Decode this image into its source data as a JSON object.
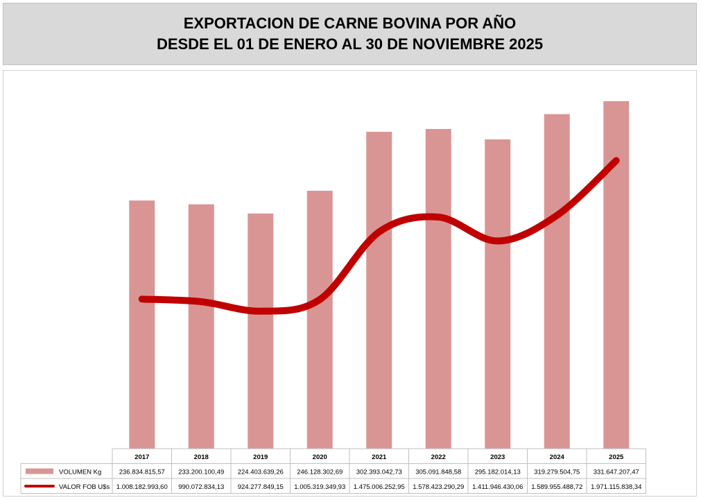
{
  "title_line1": "EXPORTACION DE CARNE BOVINA POR AÑO",
  "title_line2": "DESDE EL 01 DE ENERO AL 30 DE NOVIEMBRE 2025",
  "colors": {
    "bar": "#d99594",
    "line": "#c00000",
    "title_bg": "#d9d9d9"
  },
  "chart_data": {
    "type": "bar",
    "categories": [
      "2017",
      "2018",
      "2019",
      "2020",
      "2021",
      "2022",
      "2023",
      "2024",
      "2025"
    ],
    "series": [
      {
        "name": "VOLUMEN Kg",
        "kind": "bar",
        "values": [
          236834815.57,
          233200100.49,
          224403639.26,
          246128302.69,
          302393042.73,
          305091848.58,
          295182014.13,
          319279504.75,
          331647207.47
        ],
        "labels": [
          "236.834.815,57",
          "233.200.100,49",
          "224.403.639,26",
          "246.128.302,69",
          "302.393.042,73",
          "305.091.848,58",
          "295.182.014,13",
          "319.279.504,75",
          "331.647.207,47"
        ]
      },
      {
        "name": "VALOR FOB U$s",
        "kind": "line",
        "smooth": true,
        "values": [
          1008182993.6,
          990072834.13,
          924277849.15,
          1005319349.93,
          1475006252.95,
          1578423290.29,
          1411946430.06,
          1589955488.72,
          1971115838.34
        ],
        "labels": [
          "1.008.182.993,60",
          "990.072.834,13",
          "924.277.849,15",
          "1.005.319.349,93",
          "1.475.006.252,95",
          "1.578.423.290,29",
          "1.411.946.430,06",
          "1.589.955.488,72",
          "1.971.115.838,34"
        ]
      }
    ],
    "data_table": true,
    "grid": false
  }
}
